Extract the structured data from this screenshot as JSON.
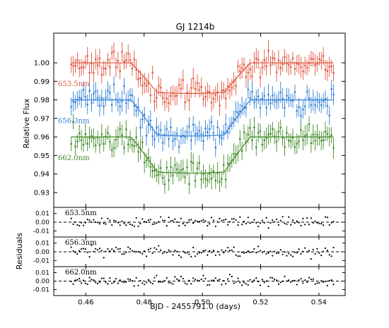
{
  "chart_data": {
    "title": "GJ 1214b",
    "xlabel": "BJD - 2455791.0 (days)",
    "xlim": [
      0.449,
      0.549
    ],
    "x_ticks": [
      "0.46",
      "0.48",
      "0.50",
      "0.52",
      "0.54"
    ],
    "main": {
      "type": "scatter",
      "ylabel": "Relative Flux",
      "ylim": [
        0.922,
        1.016
      ],
      "y_ticks": [
        "0.93",
        "0.94",
        "0.95",
        "0.96",
        "0.97",
        "0.98",
        "0.99",
        "1.00"
      ],
      "series": [
        {
          "name": "653.5nm",
          "color": "#e0533a",
          "baseline": 1.0,
          "depth": 0.0165,
          "scatter": 0.0045,
          "errbar": 0.0045,
          "seed": 11
        },
        {
          "name": "656.3nm",
          "color": "#2f7fd6",
          "baseline": 0.98,
          "depth": 0.0195,
          "scatter": 0.0045,
          "errbar": 0.0045,
          "seed": 23
        },
        {
          "name": "662.0nm",
          "color": "#3f8a26",
          "baseline": 0.96,
          "depth": 0.0195,
          "scatter": 0.0045,
          "errbar": 0.0045,
          "seed": 37
        }
      ],
      "transit": {
        "t1": 0.4755,
        "t2": 0.4845,
        "t3": 0.5075,
        "t4": 0.5165
      },
      "time_range": [
        0.455,
        0.545
      ],
      "n_points": 130
    },
    "residuals": {
      "ylabel": "Residuals",
      "ylim": [
        -0.017,
        0.017
      ],
      "y_ticks": [
        "0.01",
        "0.00",
        "-0.01"
      ],
      "panels": [
        {
          "label": "653.5nm",
          "seed": 51
        },
        {
          "label": "656.3nm",
          "seed": 63
        },
        {
          "label": "662.0nm",
          "seed": 77
        }
      ],
      "scatter": 0.004
    }
  }
}
